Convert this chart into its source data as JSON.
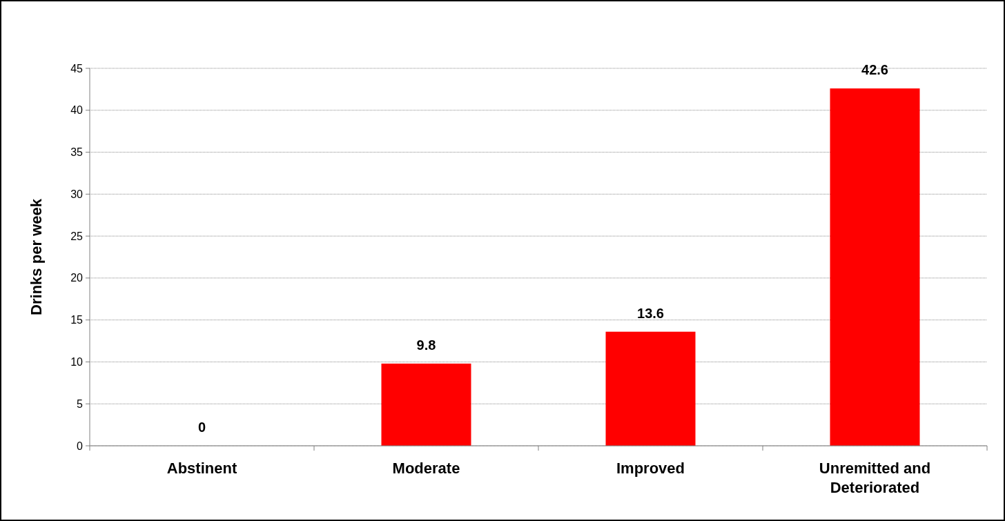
{
  "chart_data": {
    "type": "bar",
    "ylabel": "Drinks per week",
    "categories": [
      "Abstinent",
      "Moderate",
      "Improved",
      "Unremitted and Deteriorated"
    ],
    "values": [
      0,
      9.8,
      13.6,
      42.6
    ],
    "color": "#ff0000",
    "ylim": [
      0,
      45
    ],
    "yticks": [
      0,
      5,
      10,
      15,
      20,
      25,
      30,
      35,
      40,
      45
    ],
    "grid": "y",
    "data_labels": true
  }
}
